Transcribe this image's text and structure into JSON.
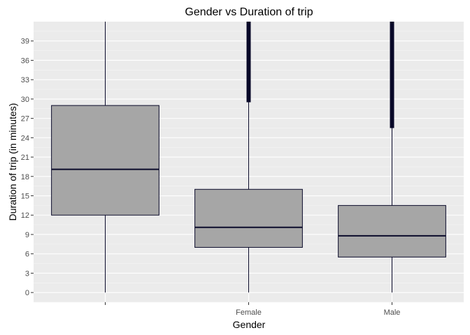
{
  "chart_data": {
    "type": "boxplot",
    "title": "Gender vs Duration of trip",
    "xlabel": "Gender",
    "ylabel": "Duration of trip (in minutes)",
    "categories": [
      "",
      "Female",
      "Male"
    ],
    "ylim": [
      -1.5,
      42
    ],
    "y_ticks": [
      0,
      3,
      6,
      9,
      12,
      15,
      18,
      21,
      24,
      27,
      30,
      33,
      36,
      39
    ],
    "y_tick_labels": [
      "0",
      "3",
      "6",
      "9",
      "12",
      "15",
      "18",
      "21",
      "24",
      "27",
      "30",
      "33",
      "36",
      "39"
    ],
    "grid": true,
    "boxes": [
      {
        "category": "",
        "whisker_low": 0,
        "q1": 12,
        "median": 19.1,
        "q3": 29,
        "whisker_high": 42,
        "outliers_from": null
      },
      {
        "category": "Female",
        "whisker_low": 0,
        "q1": 7,
        "median": 10.1,
        "q3": 16,
        "whisker_high": 29.5,
        "outliers_from": 29.5
      },
      {
        "category": "Male",
        "whisker_low": 0,
        "q1": 5.5,
        "median": 8.8,
        "q3": 13.5,
        "whisker_high": 25.5,
        "outliers_from": 25.5
      }
    ],
    "colors": {
      "panel": "#ebebeb",
      "grid_major": "#ffffff",
      "box_fill": "#a6a6a6",
      "box_line": "#0b0b2b",
      "outliers": "#080828"
    }
  }
}
